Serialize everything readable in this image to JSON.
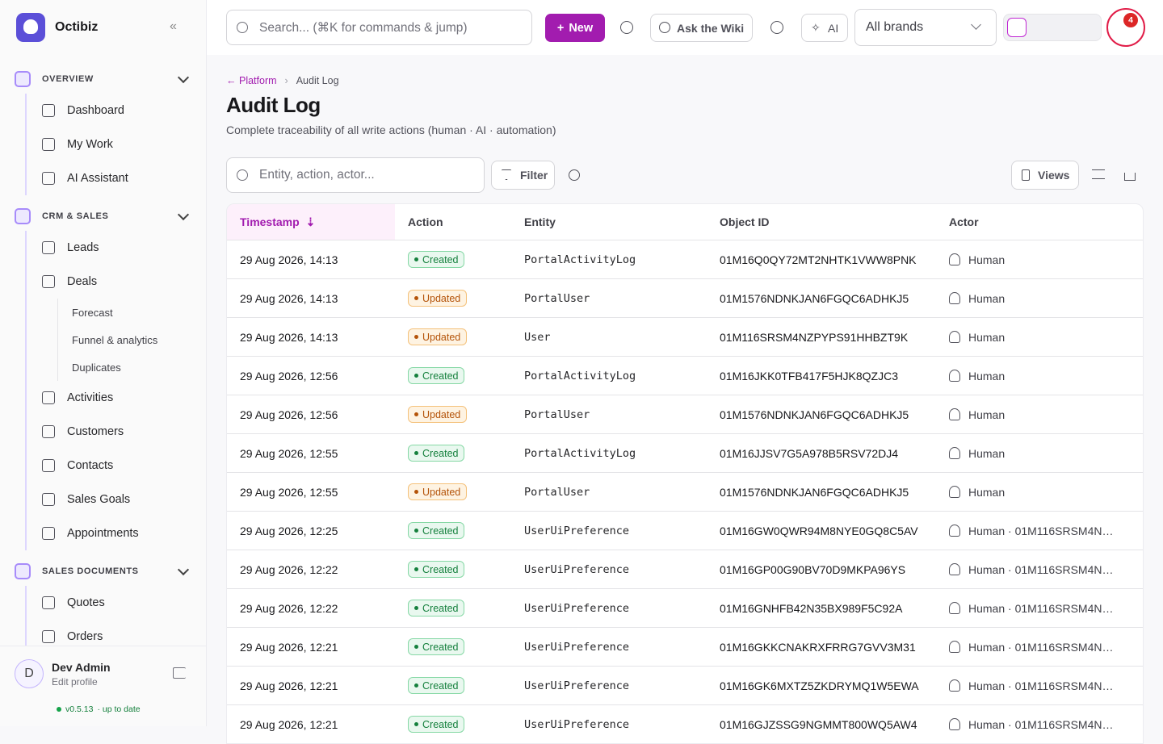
{
  "sidebar": {
    "brand": "Octibiz",
    "sections": [
      {
        "title": "OVERVIEW",
        "items": [
          {
            "label": "Dashboard"
          },
          {
            "label": "My Work"
          },
          {
            "label": "AI Assistant"
          }
        ]
      },
      {
        "title": "CRM & SALES",
        "items": [
          {
            "label": "Leads"
          },
          {
            "label": "Deals",
            "children": [
              "Forecast",
              "Funnel & analytics",
              "Duplicates"
            ]
          },
          {
            "label": "Activities"
          },
          {
            "label": "Customers"
          },
          {
            "label": "Contacts"
          },
          {
            "label": "Sales Goals"
          },
          {
            "label": "Appointments"
          }
        ]
      },
      {
        "title": "SALES DOCUMENTS",
        "items": [
          {
            "label": "Quotes"
          },
          {
            "label": "Orders"
          }
        ]
      }
    ],
    "user": {
      "initial": "D",
      "name": "Dev Admin",
      "sub": "Edit profile",
      "version": "v0.5.13",
      "status": "· up to date"
    }
  },
  "topbar": {
    "search": "Search... (⌘K for commands & jump)",
    "new": "New",
    "wiki": "Ask the Wiki",
    "ai": "AI",
    "brands": "All brands",
    "notifications": "4"
  },
  "breadcrumb": [
    "Platform",
    "Audit Log"
  ],
  "header": {
    "title": "Audit Log",
    "subtitle": "Complete traceability of all write actions (human · AI · automation)"
  },
  "toolbar": {
    "search": "Entity, action, actor...",
    "filter": "Filter",
    "views": "Views"
  },
  "table": {
    "columns": [
      "Timestamp",
      "Action",
      "Entity",
      "Object ID",
      "Actor"
    ],
    "rows": [
      [
        "29 Aug 2026, 14:13",
        "Created",
        "PortalActivityLog",
        "01M16Q0QY72MT2NHTK1VWW8PNK",
        "Human"
      ],
      [
        "29 Aug 2026, 14:13",
        "Updated",
        "PortalUser",
        "01M1576NDNKJAN6FGQC6ADHKJ5",
        "Human"
      ],
      [
        "29 Aug 2026, 14:13",
        "Updated",
        "User",
        "01M116SRSM4NZPYPS91HHBZT9K",
        "Human"
      ],
      [
        "29 Aug 2026, 12:56",
        "Created",
        "PortalActivityLog",
        "01M16JKK0TFB417F5HJK8QZJC3",
        "Human"
      ],
      [
        "29 Aug 2026, 12:56",
        "Updated",
        "PortalUser",
        "01M1576NDNKJAN6FGQC6ADHKJ5",
        "Human"
      ],
      [
        "29 Aug 2026, 12:55",
        "Created",
        "PortalActivityLog",
        "01M16JJSV7G5A978B5RSV72DJ4",
        "Human"
      ],
      [
        "29 Aug 2026, 12:55",
        "Updated",
        "PortalUser",
        "01M1576NDNKJAN6FGQC6ADHKJ5",
        "Human"
      ],
      [
        "29 Aug 2026, 12:25",
        "Created",
        "UserUiPreference",
        "01M16GW0QWR94M8NYE0GQ8C5AV",
        "Human · 01M116SRSM4N…"
      ],
      [
        "29 Aug 2026, 12:22",
        "Created",
        "UserUiPreference",
        "01M16GP00G90BV70D9MKPA96YS",
        "Human · 01M116SRSM4N…"
      ],
      [
        "29 Aug 2026, 12:22",
        "Created",
        "UserUiPreference",
        "01M16GNHFB42N35BX989F5C92A",
        "Human · 01M116SRSM4N…"
      ],
      [
        "29 Aug 2026, 12:21",
        "Created",
        "UserUiPreference",
        "01M16GKKCNAKRXFRRG7GVV3M31",
        "Human · 01M116SRSM4N…"
      ],
      [
        "29 Aug 2026, 12:21",
        "Created",
        "UserUiPreference",
        "01M16GK6MXTZ5ZKDRYMQ1W5EWA",
        "Human · 01M116SRSM4N…"
      ],
      [
        "29 Aug 2026, 12:21",
        "Created",
        "UserUiPreference",
        "01M16GJZSSG9NGMMT800WQ5AW4",
        "Human · 01M116SRSM4N…"
      ]
    ]
  }
}
